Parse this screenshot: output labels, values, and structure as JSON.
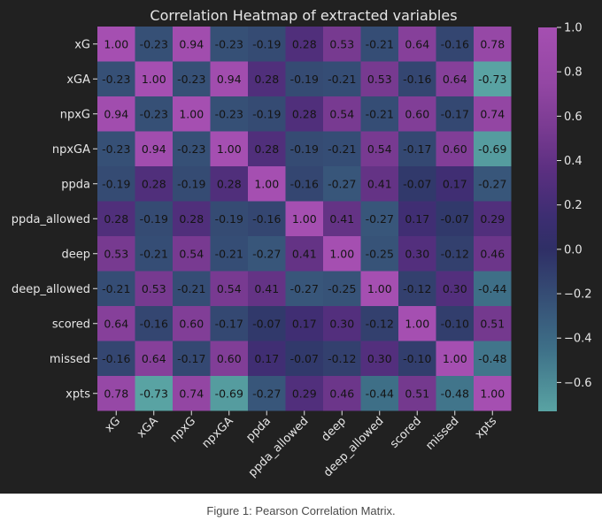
{
  "colors": {
    "background": "#212121",
    "text": "#e6e6e6",
    "cell_text": "#141414",
    "colormap_stops": [
      [
        -0.73,
        "#59a3a3"
      ],
      [
        -0.45,
        "#3e7088"
      ],
      [
        -0.2,
        "#354c74"
      ],
      [
        0.0,
        "#2f2f66"
      ],
      [
        0.15,
        "#3d2e72"
      ],
      [
        0.35,
        "#5a2f80"
      ],
      [
        0.55,
        "#7a3b92"
      ],
      [
        0.75,
        "#9447a4"
      ],
      [
        1.0,
        "#a54fb1"
      ]
    ]
  },
  "chart_data": {
    "type": "heatmap",
    "title": "Correlation Heatmap of extracted variables",
    "rows": [
      "xG",
      "xGA",
      "npxG",
      "npxGA",
      "ppda",
      "ppda_allowed",
      "deep",
      "deep_allowed",
      "scored",
      "missed",
      "xpts"
    ],
    "columns": [
      "xG",
      "xGA",
      "npxG",
      "npxGA",
      "ppda",
      "ppda_allowed",
      "deep",
      "deep_allowed",
      "scored",
      "missed",
      "xpts"
    ],
    "values": [
      [
        1.0,
        -0.23,
        0.94,
        -0.23,
        -0.19,
        0.28,
        0.53,
        -0.21,
        0.64,
        -0.16,
        0.78
      ],
      [
        -0.23,
        1.0,
        -0.23,
        0.94,
        0.28,
        -0.19,
        -0.21,
        0.53,
        -0.16,
        0.64,
        -0.73
      ],
      [
        0.94,
        -0.23,
        1.0,
        -0.23,
        -0.19,
        0.28,
        0.54,
        -0.21,
        0.6,
        -0.17,
        0.74
      ],
      [
        -0.23,
        0.94,
        -0.23,
        1.0,
        0.28,
        -0.19,
        -0.21,
        0.54,
        -0.17,
        0.6,
        -0.69
      ],
      [
        -0.19,
        0.28,
        -0.19,
        0.28,
        1.0,
        -0.16,
        -0.27,
        0.41,
        -0.07,
        0.17,
        -0.27
      ],
      [
        0.28,
        -0.19,
        0.28,
        -0.19,
        -0.16,
        1.0,
        0.41,
        -0.27,
        0.17,
        -0.07,
        0.29
      ],
      [
        0.53,
        -0.21,
        0.54,
        -0.21,
        -0.27,
        0.41,
        1.0,
        -0.25,
        0.3,
        -0.12,
        0.46
      ],
      [
        -0.21,
        0.53,
        -0.21,
        0.54,
        0.41,
        -0.27,
        -0.25,
        1.0,
        -0.12,
        0.3,
        -0.44
      ],
      [
        0.64,
        -0.16,
        0.6,
        -0.17,
        -0.07,
        0.17,
        0.3,
        -0.12,
        1.0,
        -0.1,
        0.51
      ],
      [
        -0.16,
        0.64,
        -0.17,
        0.6,
        0.17,
        -0.07,
        -0.12,
        0.3,
        -0.1,
        1.0,
        -0.48
      ],
      [
        0.78,
        -0.73,
        0.74,
        -0.69,
        -0.27,
        0.29,
        0.46,
        -0.44,
        0.51,
        -0.48,
        1.0
      ]
    ],
    "colorbar": {
      "ticks": [
        "1.0",
        "0.8",
        "0.6",
        "0.4",
        "0.2",
        "0.0",
        "−0.2",
        "−0.4",
        "−0.6"
      ],
      "tick_values": [
        1.0,
        0.8,
        0.6,
        0.4,
        0.2,
        0.0,
        -0.2,
        -0.4,
        -0.6
      ],
      "range": [
        -0.73,
        1.0
      ]
    }
  },
  "caption": "Figure 1: Pearson Correlation Matrix."
}
